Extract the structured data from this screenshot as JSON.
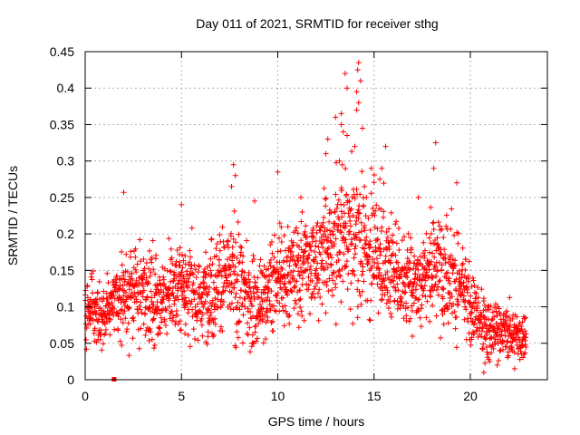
{
  "chart_data": {
    "type": "scatter",
    "title": "Day 011 of 2021, SRMTID for receiver sthg",
    "xlabel": "GPS time / hours",
    "ylabel": "SRMTID / TECUs",
    "xlim": [
      0,
      24
    ],
    "ylim": [
      0,
      0.45
    ],
    "xticks": [
      "0",
      "5",
      "10",
      "15",
      "20"
    ],
    "xtick_values": [
      0,
      5,
      10,
      15,
      20
    ],
    "yticks": [
      "0",
      "0.05",
      "0.1",
      "0.15",
      "0.2",
      "0.25",
      "0.3",
      "0.35",
      "0.4",
      "0.45"
    ],
    "ytick_values": [
      0,
      0.05,
      0.1,
      0.15,
      0.2,
      0.25,
      0.3,
      0.35,
      0.4,
      0.45
    ],
    "grid": true,
    "marker": "+",
    "series_color": "#ff0000",
    "profile": [
      {
        "t": 0.0,
        "mid": 0.1,
        "spread": 0.03
      },
      {
        "t": 1.0,
        "mid": 0.09,
        "spread": 0.03
      },
      {
        "t": 2.0,
        "mid": 0.12,
        "spread": 0.04
      },
      {
        "t": 3.0,
        "mid": 0.12,
        "spread": 0.045
      },
      {
        "t": 4.0,
        "mid": 0.11,
        "spread": 0.04
      },
      {
        "t": 5.0,
        "mid": 0.13,
        "spread": 0.045
      },
      {
        "t": 6.0,
        "mid": 0.11,
        "spread": 0.04
      },
      {
        "t": 7.0,
        "mid": 0.14,
        "spread": 0.05
      },
      {
        "t": 8.0,
        "mid": 0.13,
        "spread": 0.06
      },
      {
        "t": 9.0,
        "mid": 0.1,
        "spread": 0.04
      },
      {
        "t": 10.0,
        "mid": 0.14,
        "spread": 0.05
      },
      {
        "t": 11.0,
        "mid": 0.15,
        "spread": 0.05
      },
      {
        "t": 12.0,
        "mid": 0.17,
        "spread": 0.055
      },
      {
        "t": 13.0,
        "mid": 0.19,
        "spread": 0.06
      },
      {
        "t": 14.0,
        "mid": 0.2,
        "spread": 0.065
      },
      {
        "t": 15.0,
        "mid": 0.18,
        "spread": 0.06
      },
      {
        "t": 16.0,
        "mid": 0.15,
        "spread": 0.05
      },
      {
        "t": 17.0,
        "mid": 0.13,
        "spread": 0.045
      },
      {
        "t": 18.0,
        "mid": 0.16,
        "spread": 0.05
      },
      {
        "t": 19.0,
        "mid": 0.15,
        "spread": 0.055
      },
      {
        "t": 20.0,
        "mid": 0.1,
        "spread": 0.04
      },
      {
        "t": 21.0,
        "mid": 0.07,
        "spread": 0.03
      },
      {
        "t": 22.0,
        "mid": 0.065,
        "spread": 0.025
      },
      {
        "t": 22.9,
        "mid": 0.06,
        "spread": 0.025
      }
    ],
    "peaks": [
      {
        "x": 14.2,
        "y": 0.435
      },
      {
        "x": 14.15,
        "y": 0.425
      },
      {
        "x": 13.5,
        "y": 0.42
      },
      {
        "x": 14.3,
        "y": 0.41
      },
      {
        "x": 13.6,
        "y": 0.4
      },
      {
        "x": 14.1,
        "y": 0.395
      },
      {
        "x": 14.2,
        "y": 0.38
      },
      {
        "x": 14.1,
        "y": 0.37
      },
      {
        "x": 13.3,
        "y": 0.365
      },
      {
        "x": 13.0,
        "y": 0.36
      },
      {
        "x": 13.3,
        "y": 0.35
      },
      {
        "x": 14.4,
        "y": 0.345
      },
      {
        "x": 13.4,
        "y": 0.34
      },
      {
        "x": 13.6,
        "y": 0.335
      },
      {
        "x": 12.6,
        "y": 0.33
      },
      {
        "x": 18.2,
        "y": 0.325
      },
      {
        "x": 15.6,
        "y": 0.32
      },
      {
        "x": 14.0,
        "y": 0.32
      },
      {
        "x": 12.5,
        "y": 0.31
      },
      {
        "x": 13.2,
        "y": 0.3
      },
      {
        "x": 7.7,
        "y": 0.295
      },
      {
        "x": 15.4,
        "y": 0.29
      },
      {
        "x": 18.1,
        "y": 0.29
      },
      {
        "x": 10.0,
        "y": 0.285
      },
      {
        "x": 7.8,
        "y": 0.28
      },
      {
        "x": 19.3,
        "y": 0.27
      },
      {
        "x": 15.3,
        "y": 0.275
      },
      {
        "x": 7.6,
        "y": 0.265
      },
      {
        "x": 14.5,
        "y": 0.265
      },
      {
        "x": 13.3,
        "y": 0.26
      },
      {
        "x": 2.0,
        "y": 0.257
      },
      {
        "x": 11.2,
        "y": 0.25
      },
      {
        "x": 14.6,
        "y": 0.25
      },
      {
        "x": 17.3,
        "y": 0.25
      },
      {
        "x": 5.0,
        "y": 0.24
      },
      {
        "x": 8.8,
        "y": 0.245
      },
      {
        "x": 20.7,
        "y": 0.01
      },
      {
        "x": 21.4,
        "y": 0.02
      },
      {
        "x": 22.3,
        "y": 0.015
      },
      {
        "x": 21.0,
        "y": 0.025
      }
    ],
    "outlier": {
      "x": 1.5,
      "y": 0.0
    }
  }
}
